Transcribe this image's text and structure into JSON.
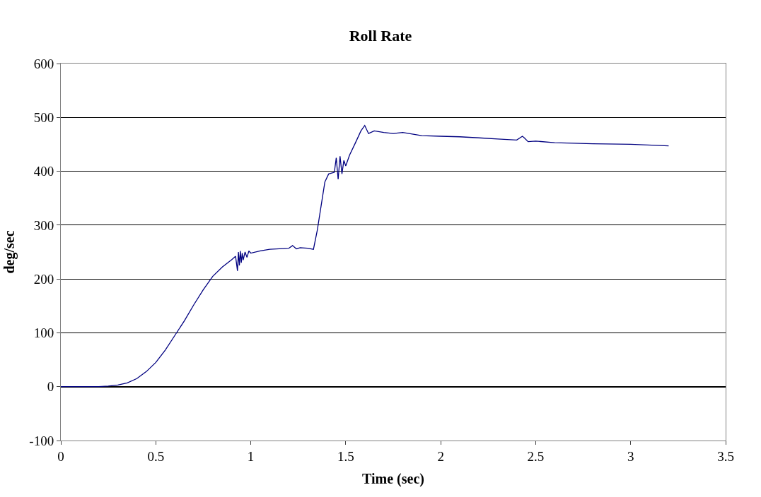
{
  "chart_data": {
    "type": "line",
    "title": "Roll Rate",
    "xlabel": "Time (sec)",
    "ylabel": "deg/sec",
    "x": [
      0,
      0.1,
      0.2,
      0.25,
      0.3,
      0.35,
      0.4,
      0.45,
      0.5,
      0.55,
      0.6,
      0.65,
      0.7,
      0.75,
      0.8,
      0.85,
      0.9,
      0.92,
      0.93,
      0.935,
      0.94,
      0.945,
      0.95,
      0.955,
      0.96,
      0.97,
      0.98,
      0.99,
      1.0,
      1.05,
      1.1,
      1.15,
      1.2,
      1.22,
      1.24,
      1.26,
      1.3,
      1.33,
      1.35,
      1.37,
      1.39,
      1.41,
      1.44,
      1.45,
      1.46,
      1.47,
      1.48,
      1.49,
      1.5,
      1.52,
      1.55,
      1.58,
      1.6,
      1.62,
      1.65,
      1.7,
      1.75,
      1.8,
      1.9,
      2.0,
      2.1,
      2.2,
      2.3,
      2.4,
      2.43,
      2.44,
      2.46,
      2.5,
      2.6,
      2.8,
      3.0,
      3.2
    ],
    "series": [
      {
        "color": "#000080",
        "values": [
          0,
          0,
          0,
          1,
          3,
          7,
          15,
          28,
          45,
          68,
          95,
          122,
          152,
          180,
          205,
          222,
          236,
          242,
          215,
          250,
          225,
          252,
          230,
          248,
          235,
          250,
          240,
          252,
          248,
          252,
          255,
          256,
          257,
          262,
          256,
          258,
          257,
          255,
          290,
          335,
          380,
          395,
          398,
          425,
          385,
          428,
          395,
          420,
          410,
          430,
          452,
          475,
          485,
          470,
          475,
          472,
          470,
          472,
          466,
          465,
          464,
          462,
          460,
          458,
          465,
          462,
          455,
          456,
          453,
          451,
          450,
          447
        ]
      }
    ],
    "xlim": [
      0,
      3.5
    ],
    "xticks": [
      0,
      0.5,
      1,
      1.5,
      2,
      2.5,
      3,
      3.5
    ],
    "ylim": [
      -100,
      600
    ],
    "yticks": [
      -100,
      0,
      100,
      200,
      300,
      400,
      500,
      600
    ],
    "grid": "y",
    "marker": "none",
    "line_style": "solid"
  }
}
